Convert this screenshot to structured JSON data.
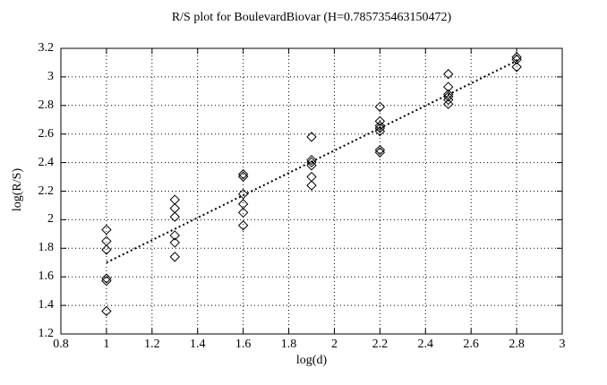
{
  "title": "R/S plot for BoulevardBiovar (H=0.785735463150472)",
  "colors": {
    "background": "#ffffff",
    "foreground": "#000000"
  },
  "chart_data": {
    "type": "scatter",
    "title": "R/S plot for BoulevardBiovar (H=0.785735463150472)",
    "xlabel": "log(d)",
    "ylabel": "log(R/S)",
    "xlim": [
      0.8,
      3.0
    ],
    "ylim": [
      1.2,
      3.2
    ],
    "xticks": [
      "0.8",
      "1",
      "1.2",
      "1.4",
      "1.6",
      "1.8",
      "2",
      "2.2",
      "2.4",
      "2.6",
      "2.8",
      "3"
    ],
    "yticks": [
      "1.2",
      "1.4",
      "1.6",
      "1.8",
      "2",
      "2.2",
      "2.4",
      "2.6",
      "2.8",
      "3",
      "3.2"
    ],
    "grid": true,
    "legend": "none",
    "marker": "open-diamond",
    "hurst_exponent": 0.785735463150472,
    "points": [
      {
        "x": 1.0,
        "y": 1.93
      },
      {
        "x": 1.0,
        "y": 1.85
      },
      {
        "x": 1.0,
        "y": 1.79
      },
      {
        "x": 1.0,
        "y": 1.58,
        "double": true
      },
      {
        "x": 1.0,
        "y": 1.36
      },
      {
        "x": 1.3,
        "y": 2.14
      },
      {
        "x": 1.3,
        "y": 2.08
      },
      {
        "x": 1.3,
        "y": 2.02
      },
      {
        "x": 1.3,
        "y": 1.89
      },
      {
        "x": 1.3,
        "y": 1.84
      },
      {
        "x": 1.3,
        "y": 1.74
      },
      {
        "x": 1.6,
        "y": 2.31,
        "double": true
      },
      {
        "x": 1.6,
        "y": 2.18
      },
      {
        "x": 1.6,
        "y": 2.11
      },
      {
        "x": 1.6,
        "y": 2.05
      },
      {
        "x": 1.6,
        "y": 1.96
      },
      {
        "x": 1.9,
        "y": 2.58
      },
      {
        "x": 1.9,
        "y": 2.41,
        "double": true
      },
      {
        "x": 1.9,
        "y": 2.38
      },
      {
        "x": 1.9,
        "y": 2.3
      },
      {
        "x": 1.9,
        "y": 2.24
      },
      {
        "x": 2.2,
        "y": 2.79
      },
      {
        "x": 2.2,
        "y": 2.69
      },
      {
        "x": 2.2,
        "y": 2.65,
        "double": true
      },
      {
        "x": 2.2,
        "y": 2.62
      },
      {
        "x": 2.2,
        "y": 2.48,
        "double": true
      },
      {
        "x": 2.5,
        "y": 3.02
      },
      {
        "x": 2.5,
        "y": 2.93
      },
      {
        "x": 2.5,
        "y": 2.87,
        "double": true
      },
      {
        "x": 2.5,
        "y": 2.84
      },
      {
        "x": 2.5,
        "y": 2.81
      },
      {
        "x": 2.8,
        "y": 3.13,
        "double": true
      },
      {
        "x": 2.8,
        "y": 3.07
      }
    ],
    "trend_line": {
      "style": "dotted",
      "x1": 1.0,
      "y1": 1.7,
      "x2": 2.81,
      "y2": 3.12
    }
  }
}
